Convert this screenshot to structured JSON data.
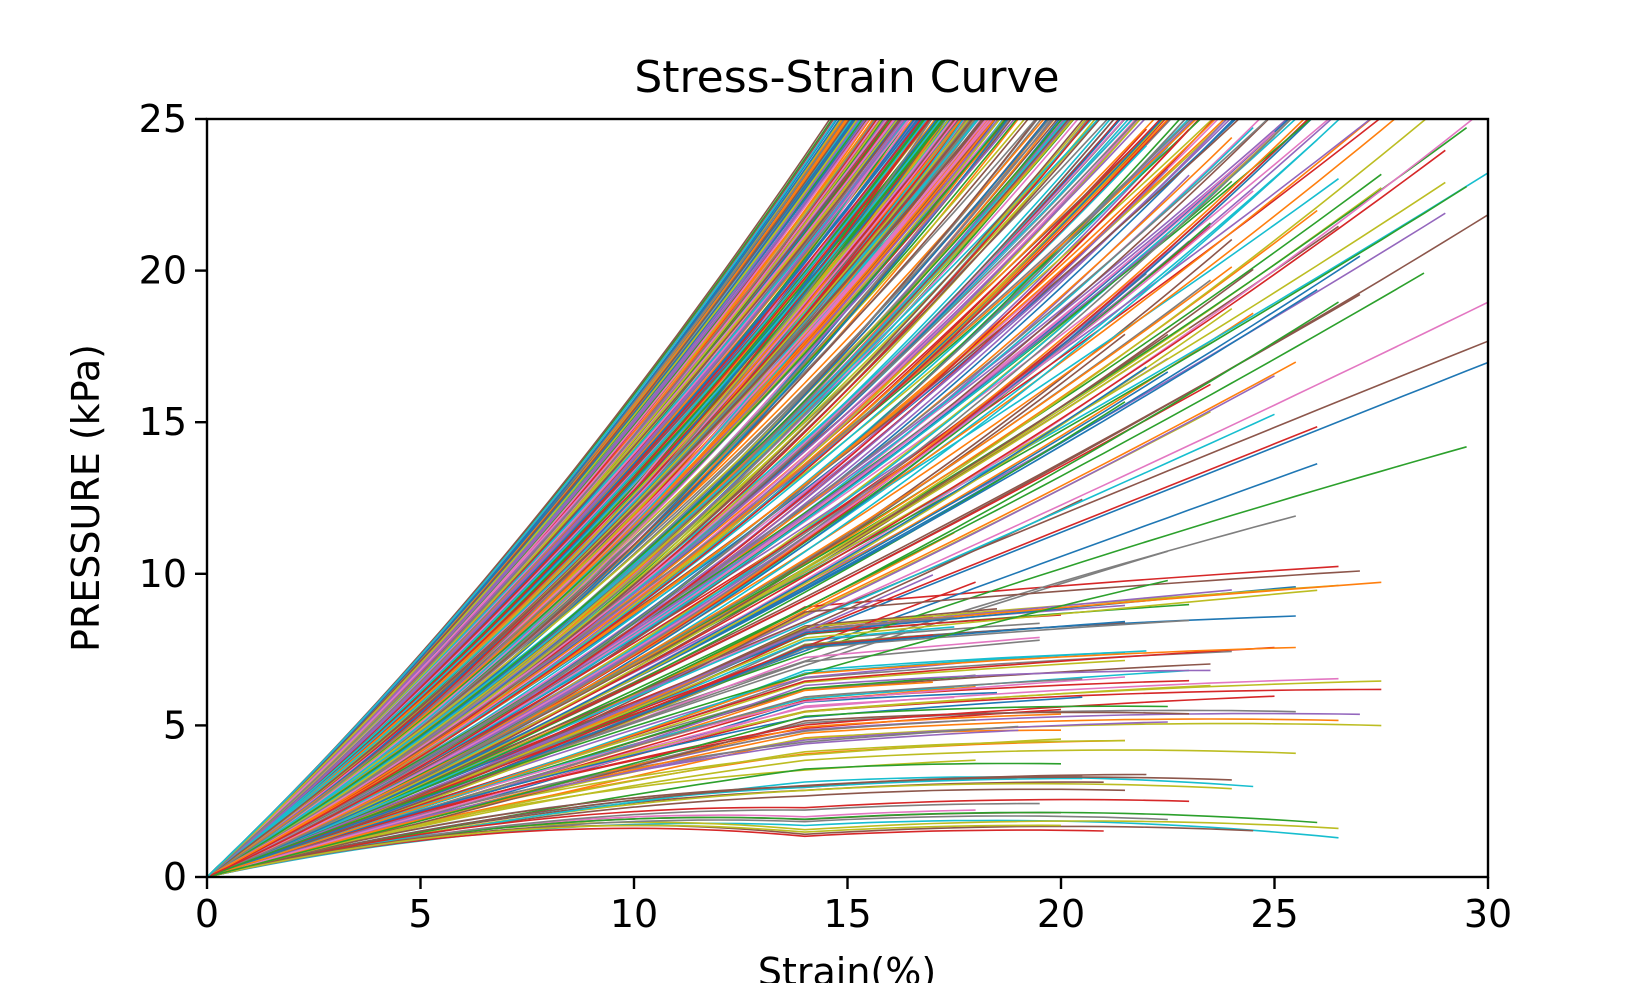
{
  "chart_data": {
    "type": "line",
    "title": "Stress-Strain Curve",
    "xlabel": "Strain(%)",
    "ylabel": "PRESSURE (kPa)",
    "xlim": [
      0,
      30
    ],
    "ylim": [
      0,
      25
    ],
    "xticks": [
      0,
      5,
      10,
      15,
      20,
      25,
      30
    ],
    "yticks": [
      0,
      5,
      10,
      15,
      20,
      25
    ],
    "grid": false,
    "legend": "none",
    "series_count": 600,
    "series_family": {
      "model": "pressure = a*strain + b*strain^2 (kPa vs %), curves stop at strain end value",
      "initial_slope_range": [
        0.3,
        1.35
      ],
      "steepest_reaches_25_at_strain": 13.5,
      "lowest_plateau_kPa": 5.2,
      "lowest_curve_end_strain": 24
    },
    "sample_series": [
      {
        "x": [
          0,
          5,
          10,
          13.5
        ],
        "y": [
          0,
          7.2,
          16.5,
          25
        ]
      },
      {
        "x": [
          0,
          5,
          10,
          15,
          20,
          25,
          29
        ],
        "y": [
          0,
          4.0,
          8.6,
          13.5,
          18.6,
          23.8,
          25
        ]
      },
      {
        "x": [
          0,
          5,
          10,
          15,
          20,
          25,
          30
        ],
        "y": [
          0,
          2.6,
          5.4,
          8.2,
          11.2,
          14.4,
          17.8
        ]
      },
      {
        "x": [
          0,
          5,
          10,
          15,
          20,
          25,
          30
        ],
        "y": [
          0,
          1.9,
          3.9,
          5.8,
          6.9,
          7.8,
          8.6
        ]
      },
      {
        "x": [
          0,
          5,
          10,
          15,
          20,
          24
        ],
        "y": [
          0,
          1.6,
          3.2,
          4.6,
          5.0,
          5.2
        ]
      }
    ],
    "palette": [
      "#1f77b4",
      "#ff7f0e",
      "#2ca02c",
      "#d62728",
      "#9467bd",
      "#8c564b",
      "#e377c2",
      "#7f7f7f",
      "#bcbd22",
      "#17becf"
    ]
  }
}
